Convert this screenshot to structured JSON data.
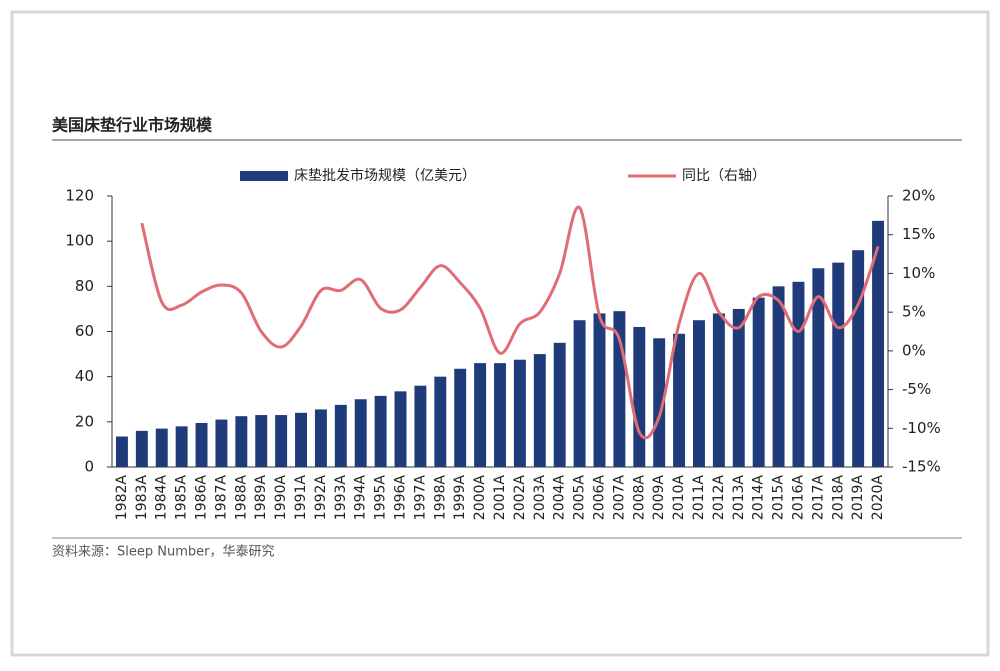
{
  "chart_data": {
    "type": "bar-line",
    "title": "美国床垫行业市场规模",
    "source": "资料来源：Sleep Number，华泰研究",
    "categories": [
      "1982A",
      "1983A",
      "1984A",
      "1985A",
      "1986A",
      "1987A",
      "1988A",
      "1989A",
      "1990A",
      "1991A",
      "1992A",
      "1993A",
      "1994A",
      "1995A",
      "1996A",
      "1997A",
      "1998A",
      "1999A",
      "2000A",
      "2001A",
      "2002A",
      "2003A",
      "2004A",
      "2005A",
      "2006A",
      "2007A",
      "2008A",
      "2009A",
      "2010A",
      "2011A",
      "2012A",
      "2013A",
      "2014A",
      "2015A",
      "2016A",
      "2017A",
      "2018A",
      "2019A",
      "2020A"
    ],
    "series": [
      {
        "name": "床垫批发市场规模（亿美元）",
        "color": "#1f3b7a",
        "type": "bar",
        "values": [
          13.5,
          16,
          17,
          18,
          19.5,
          21,
          22.5,
          23,
          23,
          24,
          25.5,
          27.5,
          30,
          31.5,
          33.5,
          36,
          40,
          43.5,
          46,
          46,
          47.5,
          50,
          55,
          65,
          68,
          69,
          62,
          57,
          59,
          65,
          68,
          70,
          75,
          80,
          82,
          88,
          90.5,
          96,
          109
        ]
      },
      {
        "name": "同比（右轴）",
        "color": "#e06c75",
        "type": "line",
        "axis": "y2",
        "values": [
          null,
          16.5,
          6.3,
          5.9,
          7.6,
          8.5,
          7.5,
          2.5,
          0.5,
          3.2,
          7.8,
          7.8,
          9.2,
          5.5,
          5.3,
          8.2,
          11,
          8.8,
          5.5,
          -0.3,
          3.5,
          5,
          10,
          18.5,
          4.5,
          1.5,
          -10.5,
          -8.5,
          3.5,
          10,
          5,
          3,
          7,
          6.5,
          2.5,
          7,
          3,
          6,
          13.5
        ]
      }
    ],
    "ylim": [
      0,
      120
    ],
    "yticks": [
      0,
      20,
      40,
      60,
      80,
      100,
      120
    ],
    "y2lim": [
      -15,
      20
    ],
    "y2ticks": [
      {
        "value": -15,
        "label": "-15%"
      },
      {
        "value": -10,
        "label": "-10%"
      },
      {
        "value": -5,
        "label": "-5%"
      },
      {
        "value": 0,
        "label": "0%"
      },
      {
        "value": 5,
        "label": "5%"
      },
      {
        "value": 10,
        "label": "10%"
      },
      {
        "value": 15,
        "label": "15%"
      },
      {
        "value": 20,
        "label": "20%"
      }
    ]
  }
}
